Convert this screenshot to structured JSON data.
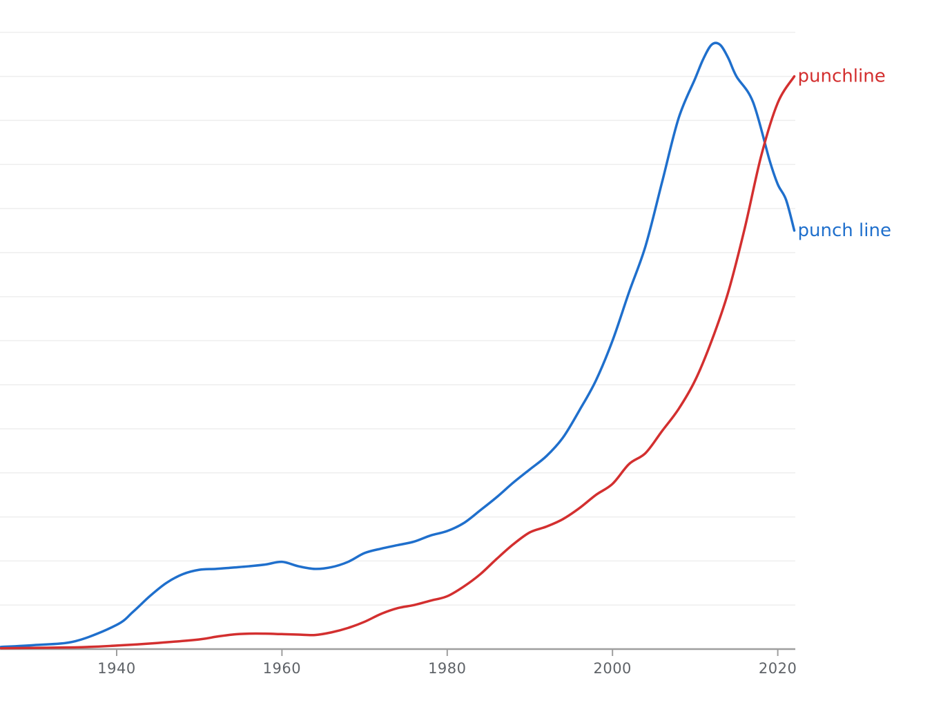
{
  "chart_data": {
    "type": "line",
    "title": "",
    "xlabel": "",
    "ylabel": "",
    "xlim": [
      1926,
      2022
    ],
    "ylim": [
      0,
      14
    ],
    "x_ticks": [
      1940,
      1960,
      1980,
      2000,
      2020
    ],
    "x_tick_labels": [
      "1940",
      "1960",
      "1980",
      "2000",
      "2020"
    ],
    "grid": true,
    "y_gridlines": [
      1,
      2,
      3,
      4,
      5,
      6,
      7,
      8,
      9,
      10,
      11,
      12,
      13,
      14
    ],
    "legend": "inline-right",
    "series": [
      {
        "name": "punch line",
        "color": "#1f6fcc",
        "points": [
          [
            1926,
            0.05
          ],
          [
            1930,
            0.09
          ],
          [
            1935,
            0.18
          ],
          [
            1940,
            0.55
          ],
          [
            1942,
            0.85
          ],
          [
            1944,
            1.2
          ],
          [
            1946,
            1.5
          ],
          [
            1948,
            1.7
          ],
          [
            1950,
            1.8
          ],
          [
            1952,
            1.82
          ],
          [
            1954,
            1.85
          ],
          [
            1956,
            1.88
          ],
          [
            1958,
            1.92
          ],
          [
            1960,
            1.98
          ],
          [
            1962,
            1.88
          ],
          [
            1964,
            1.82
          ],
          [
            1966,
            1.86
          ],
          [
            1968,
            1.98
          ],
          [
            1970,
            2.18
          ],
          [
            1972,
            2.28
          ],
          [
            1974,
            2.36
          ],
          [
            1976,
            2.44
          ],
          [
            1978,
            2.58
          ],
          [
            1980,
            2.68
          ],
          [
            1982,
            2.86
          ],
          [
            1984,
            3.15
          ],
          [
            1986,
            3.45
          ],
          [
            1988,
            3.78
          ],
          [
            1990,
            4.08
          ],
          [
            1992,
            4.38
          ],
          [
            1994,
            4.8
          ],
          [
            1996,
            5.42
          ],
          [
            1998,
            6.1
          ],
          [
            2000,
            7.0
          ],
          [
            2002,
            8.1
          ],
          [
            2004,
            9.15
          ],
          [
            2006,
            10.6
          ],
          [
            2008,
            12.05
          ],
          [
            2010,
            12.95
          ],
          [
            2011,
            13.4
          ],
          [
            2012,
            13.72
          ],
          [
            2013,
            13.72
          ],
          [
            2014,
            13.42
          ],
          [
            2015,
            13.0
          ],
          [
            2017,
            12.42
          ],
          [
            2019,
            11.1
          ],
          [
            2020,
            10.55
          ],
          [
            2021,
            10.2
          ],
          [
            2022,
            9.5
          ]
        ]
      },
      {
        "name": "punchline",
        "color": "#d32f2f",
        "points": [
          [
            1926,
            0.02
          ],
          [
            1935,
            0.04
          ],
          [
            1940,
            0.08
          ],
          [
            1945,
            0.14
          ],
          [
            1950,
            0.22
          ],
          [
            1952,
            0.28
          ],
          [
            1954,
            0.33
          ],
          [
            1956,
            0.35
          ],
          [
            1958,
            0.35
          ],
          [
            1960,
            0.34
          ],
          [
            1962,
            0.33
          ],
          [
            1964,
            0.32
          ],
          [
            1966,
            0.38
          ],
          [
            1968,
            0.48
          ],
          [
            1970,
            0.62
          ],
          [
            1972,
            0.8
          ],
          [
            1974,
            0.93
          ],
          [
            1976,
            1.0
          ],
          [
            1978,
            1.1
          ],
          [
            1980,
            1.2
          ],
          [
            1982,
            1.42
          ],
          [
            1984,
            1.7
          ],
          [
            1986,
            2.05
          ],
          [
            1988,
            2.38
          ],
          [
            1990,
            2.65
          ],
          [
            1992,
            2.78
          ],
          [
            1994,
            2.95
          ],
          [
            1996,
            3.2
          ],
          [
            1998,
            3.5
          ],
          [
            2000,
            3.75
          ],
          [
            2002,
            4.2
          ],
          [
            2004,
            4.45
          ],
          [
            2006,
            4.95
          ],
          [
            2008,
            5.45
          ],
          [
            2010,
            6.1
          ],
          [
            2012,
            7.0
          ],
          [
            2014,
            8.1
          ],
          [
            2016,
            9.55
          ],
          [
            2018,
            11.2
          ],
          [
            2020,
            12.4
          ],
          [
            2022,
            13.0
          ]
        ]
      }
    ]
  }
}
